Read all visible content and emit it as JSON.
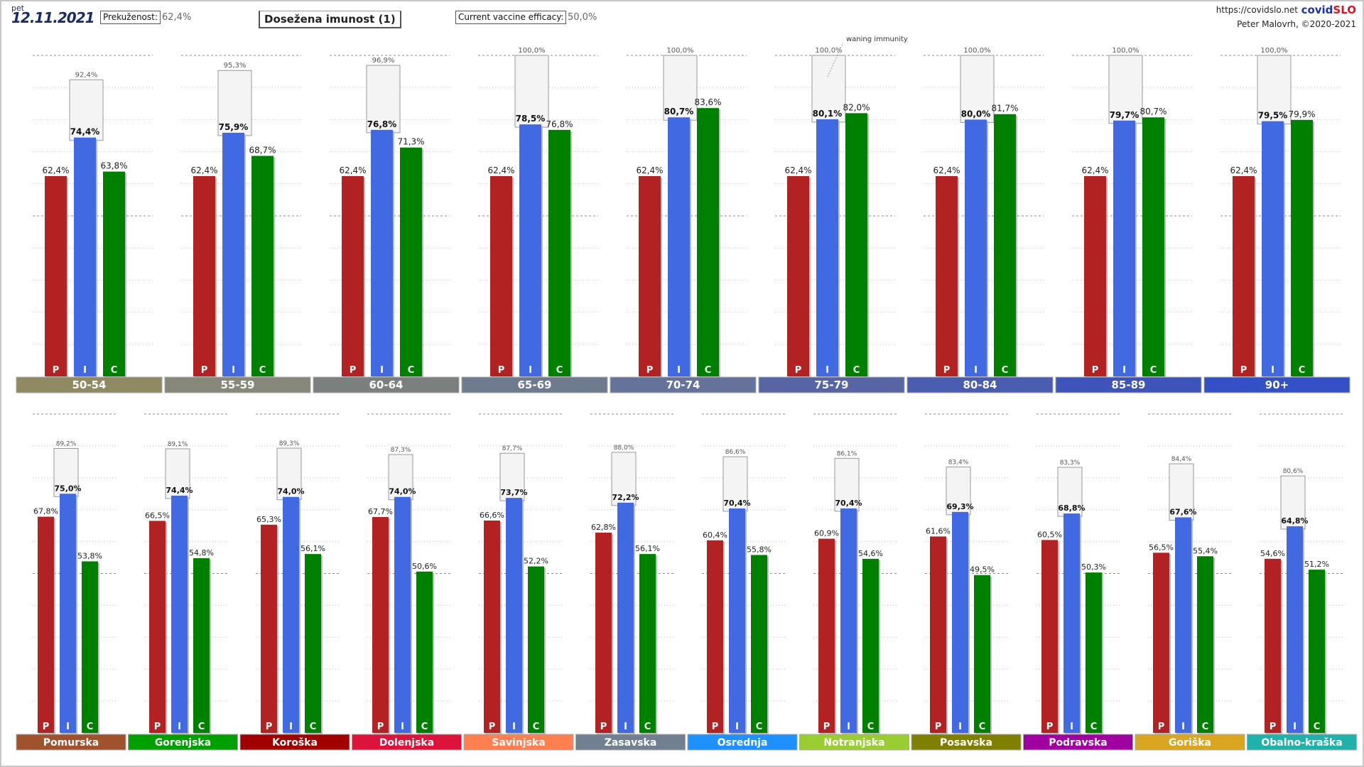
{
  "header": {
    "day": "pet",
    "date": "12.11.2021",
    "prekuzenost_label": "Prekuženost:",
    "prekuzenost_value": "62,4%",
    "title": "Dosežena imunost (1)",
    "efficacy_label": "Current vaccine efficacy:",
    "efficacy_value": "50,0%",
    "url": "https://covidslo.net",
    "logo_a": "covid",
    "logo_b": "SLO",
    "author": "Peter Malovrh, ©2020-2021"
  },
  "chart_data": [
    {
      "type": "bar",
      "ylim": [
        0,
        100
      ],
      "bar_letters": [
        "P",
        "I",
        "C"
      ],
      "annotation": "waning immunity",
      "annotation_group": "75-79",
      "colors": {
        "P": "#b22222",
        "I": "#4169e1",
        "C": "#008000",
        "max_box": "#f4f4f4"
      },
      "categories": [
        "50-54",
        "55-59",
        "60-64",
        "65-69",
        "70-74",
        "75-79",
        "80-84",
        "85-89",
        "90+"
      ],
      "category_colors": [
        "#8f8a64",
        "#878879",
        "#7b7f7d",
        "#6e7a8d",
        "#65739a",
        "#5765a4",
        "#4a5cb0",
        "#3e54bb",
        "#3350c7"
      ],
      "series": [
        {
          "letter": "P",
          "values": [
            62.4,
            62.4,
            62.4,
            62.4,
            62.4,
            62.4,
            62.4,
            62.4,
            62.4
          ],
          "labels": [
            "62,4%",
            "62,4%",
            "62,4%",
            "62,4%",
            "62,4%",
            "62,4%",
            "62,4%",
            "62,4%",
            "62,4%"
          ]
        },
        {
          "letter": "I",
          "values": [
            74.4,
            75.9,
            76.8,
            78.5,
            80.7,
            80.1,
            80.0,
            79.7,
            79.5
          ],
          "labels": [
            "74,4%",
            "75,9%",
            "76,8%",
            "78,5%",
            "80,7%",
            "80,1%",
            "80,0%",
            "79,7%",
            "79,5%"
          ]
        },
        {
          "letter": "C",
          "values": [
            63.8,
            68.7,
            71.3,
            76.8,
            83.6,
            82.0,
            81.7,
            80.7,
            79.9
          ],
          "labels": [
            "63,8%",
            "68,7%",
            "71,3%",
            "76,8%",
            "83,6%",
            "82,0%",
            "81,7%",
            "80,7%",
            "79,9%"
          ]
        }
      ],
      "max_values": [
        92.4,
        95.3,
        96.9,
        100.0,
        100.0,
        100.0,
        100.0,
        100.0,
        100.0
      ],
      "max_labels": [
        "92,4%",
        "95,3%",
        "96,9%",
        "100,0%",
        "100,0%",
        "100,0%",
        "100,0%",
        "100,0%",
        "100,0%"
      ]
    },
    {
      "type": "bar",
      "ylim": [
        0,
        100
      ],
      "bar_letters": [
        "P",
        "I",
        "C"
      ],
      "colors": {
        "P": "#b22222",
        "I": "#4169e1",
        "C": "#008000",
        "max_box": "#f4f4f4"
      },
      "categories": [
        "Pomurska",
        "Gorenjska",
        "Koroška",
        "Dolenjska",
        "Savinjska",
        "Zasavska",
        "Osrednja",
        "Notranjska",
        "Posavska",
        "Podravska",
        "Goriška",
        "Obalno-kraška"
      ],
      "category_colors": [
        "#a0522d",
        "#00a000",
        "#a00000",
        "#dc143c",
        "#ff7f50",
        "#708090",
        "#1e90ff",
        "#9acd32",
        "#808000",
        "#a000a0",
        "#daa520",
        "#20b2aa"
      ],
      "series": [
        {
          "letter": "P",
          "values": [
            67.8,
            66.5,
            65.3,
            67.7,
            66.6,
            62.8,
            60.4,
            60.9,
            61.6,
            60.5,
            56.5,
            54.6
          ],
          "labels": [
            "67,8%",
            "66,5%",
            "65,3%",
            "67,7%",
            "66,6%",
            "62,8%",
            "60,4%",
            "60,9%",
            "61,6%",
            "60,5%",
            "56,5%",
            "54,6%"
          ]
        },
        {
          "letter": "I",
          "values": [
            75.0,
            74.4,
            74.0,
            74.0,
            73.7,
            72.2,
            70.4,
            70.4,
            69.3,
            68.8,
            67.6,
            64.8
          ],
          "labels": [
            "75,0%",
            "74,4%",
            "74,0%",
            "74,0%",
            "73,7%",
            "72,2%",
            "70,4%",
            "70,4%",
            "69,3%",
            "68,8%",
            "67,6%",
            "64,8%"
          ]
        },
        {
          "letter": "C",
          "values": [
            53.8,
            54.8,
            56.1,
            50.6,
            52.2,
            56.1,
            55.8,
            54.6,
            49.5,
            50.3,
            55.4,
            51.2
          ],
          "labels": [
            "53,8%",
            "54,8%",
            "56,1%",
            "50,6%",
            "52,2%",
            "56,1%",
            "55,8%",
            "54,6%",
            "49,5%",
            "50,3%",
            "55,4%",
            "51,2%"
          ]
        }
      ],
      "max_values": [
        89.2,
        89.1,
        89.3,
        87.3,
        87.7,
        88.0,
        86.6,
        86.1,
        83.4,
        83.3,
        84.4,
        80.6
      ],
      "max_labels": [
        "89,2%",
        "89,1%",
        "89,3%",
        "87,3%",
        "87,7%",
        "88,0%",
        "86,6%",
        "86,1%",
        "83,4%",
        "83,3%",
        "84,4%",
        "80,6%"
      ]
    }
  ]
}
